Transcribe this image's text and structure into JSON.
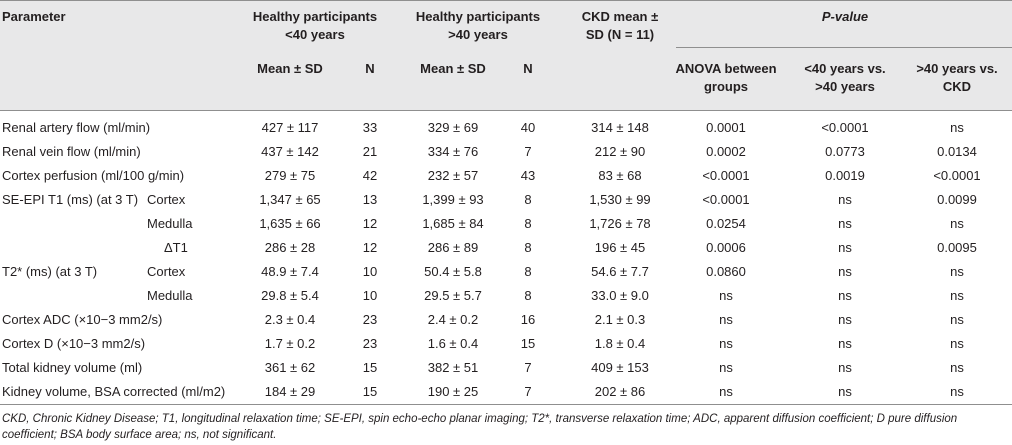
{
  "header": {
    "parameter": "Parameter",
    "group1": [
      "Healthy participants",
      "<40 years"
    ],
    "group2": [
      "Healthy participants",
      ">40 years"
    ],
    "ckd": [
      "CKD mean ±",
      "SD (N = 11)"
    ],
    "pvalue": "P-value",
    "mean_sd": "Mean ± SD",
    "n": "N",
    "anova": [
      "ANOVA between",
      "groups"
    ],
    "cmp1": [
      "<40 years vs.",
      ">40 years"
    ],
    "cmp2": [
      ">40 years vs.",
      "CKD"
    ]
  },
  "rows": [
    {
      "param": "Renal artery flow (ml/min)",
      "sub": "",
      "m1": "427 ± 117",
      "n1": "33",
      "m2": "329 ± 69",
      "n2": "40",
      "ckd": "314 ± 148",
      "anova": "0.0001",
      "p1": "<0.0001",
      "p2": "ns"
    },
    {
      "param": "Renal vein flow (ml/min)",
      "sub": "",
      "m1": "437 ± 142",
      "n1": "21",
      "m2": "334 ± 76",
      "n2": "7",
      "ckd": "212 ± 90",
      "anova": "0.0002",
      "p1": "0.0773",
      "p2": "0.0134"
    },
    {
      "param": "Cortex perfusion (ml/100 g/min)",
      "sub": "",
      "m1": "279 ± 75",
      "n1": "42",
      "m2": "232 ± 57",
      "n2": "43",
      "ckd": "83 ± 68",
      "anova": "<0.0001",
      "p1": "0.0019",
      "p2": "<0.0001"
    },
    {
      "param": "SE-EPI T1 (ms) (at 3 T)",
      "sub": "Cortex",
      "m1": "1,347 ± 65",
      "n1": "13",
      "m2": "1,399 ± 93",
      "n2": "8",
      "ckd": "1,530 ± 99",
      "anova": "<0.0001",
      "p1": "ns",
      "p2": "0.0099"
    },
    {
      "param": "",
      "sub": "Medulla",
      "m1": "1,635 ± 66",
      "n1": "12",
      "m2": "1,685 ± 84",
      "n2": "8",
      "ckd": "1,726 ± 78",
      "anova": "0.0254",
      "p1": "ns",
      "p2": "ns"
    },
    {
      "param": "",
      "sub": "ΔT1",
      "m1": "286 ± 28",
      "n1": "12",
      "m2": "286 ± 89",
      "n2": "8",
      "ckd": "196 ± 45",
      "anova": "0.0006",
      "p1": "ns",
      "p2": "0.0095"
    },
    {
      "param": "T2* (ms) (at 3 T)",
      "sub": "Cortex",
      "m1": "48.9 ± 7.4",
      "n1": "10",
      "m2": "50.4 ± 5.8",
      "n2": "8",
      "ckd": "54.6 ± 7.7",
      "anova": "0.0860",
      "p1": "ns",
      "p2": "ns"
    },
    {
      "param": "",
      "sub": "Medulla",
      "m1": "29.8 ± 5.4",
      "n1": "10",
      "m2": "29.5 ± 5.7",
      "n2": "8",
      "ckd": "33.0 ± 9.0",
      "anova": "ns",
      "p1": "ns",
      "p2": "ns"
    },
    {
      "param": "Cortex ADC (×10−3 mm2/s)",
      "sub": "",
      "m1": "2.3 ± 0.4",
      "n1": "23",
      "m2": "2.4 ± 0.2",
      "n2": "16",
      "ckd": "2.1 ± 0.3",
      "anova": "ns",
      "p1": "ns",
      "p2": "ns"
    },
    {
      "param": "Cortex D (×10−3 mm2/s)",
      "sub": "",
      "m1": "1.7 ± 0.2",
      "n1": "23",
      "m2": "1.6 ± 0.4",
      "n2": "15",
      "ckd": "1.8 ± 0.4",
      "anova": "ns",
      "p1": "ns",
      "p2": "ns"
    },
    {
      "param": "Total kidney volume (ml)",
      "sub": "",
      "m1": "361 ± 62",
      "n1": "15",
      "m2": "382 ± 51",
      "n2": "7",
      "ckd": "409 ± 153",
      "anova": "ns",
      "p1": "ns",
      "p2": "ns"
    },
    {
      "param": "Kidney volume, BSA corrected (ml/m2)",
      "sub": "",
      "m1": "184 ± 29",
      "n1": "15",
      "m2": "190 ± 25",
      "n2": "7",
      "ckd": "202 ± 86",
      "anova": "ns",
      "p1": "ns",
      "p2": "ns"
    }
  ],
  "footnote": "CKD, Chronic Kidney Disease; T1, longitudinal relaxation time; SE-EPI, spin echo-echo planar imaging; T2*, transverse relaxation time; ADC, apparent diffusion coefficient; D pure diffusion coefficient; BSA body surface area; ns, not significant."
}
